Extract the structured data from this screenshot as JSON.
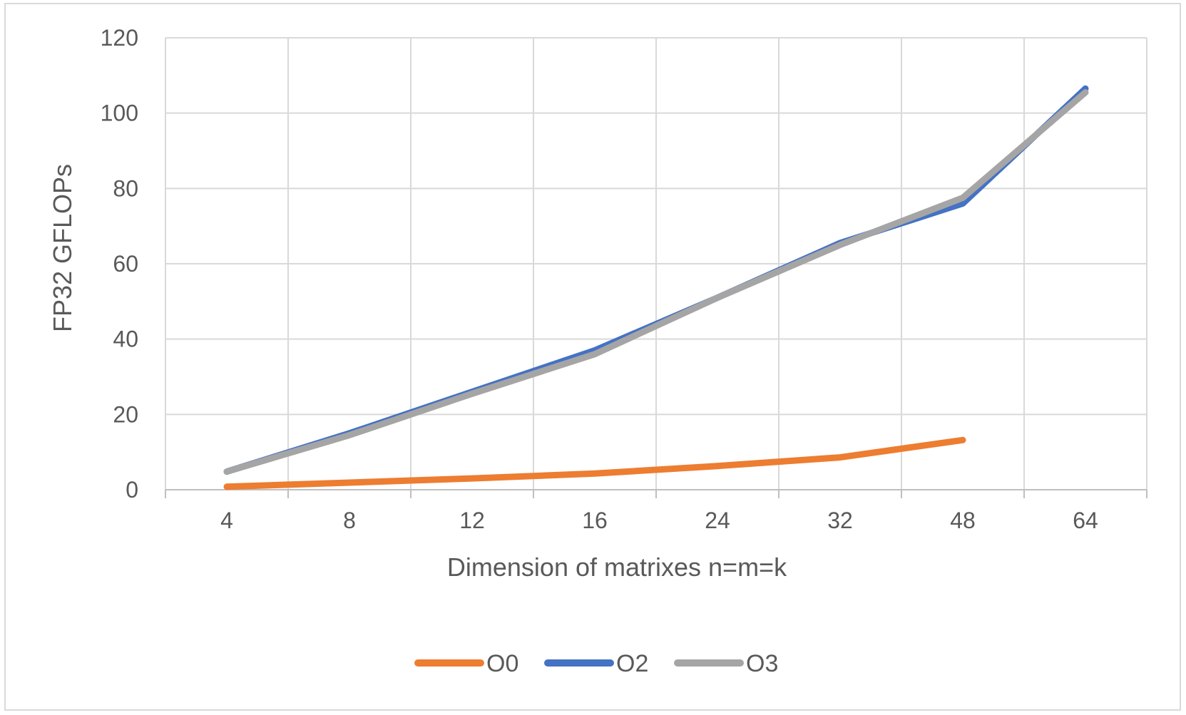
{
  "chart_data": {
    "type": "line",
    "title": "",
    "xlabel": "Dimension of matrixes n=m=k",
    "ylabel": "FP32 GFLOPs",
    "categories": [
      "4",
      "8",
      "12",
      "16",
      "24",
      "32",
      "48",
      "64"
    ],
    "ylim": [
      0,
      120
    ],
    "yticks": [
      0,
      20,
      40,
      60,
      80,
      100,
      120
    ],
    "grid": true,
    "legend_position": "bottom",
    "series": [
      {
        "name": "O0",
        "color": "#ed7d31",
        "values": [
          0.8,
          1.9,
          3.0,
          4.3,
          6.3,
          8.6,
          13.2,
          null
        ]
      },
      {
        "name": "O2",
        "color": "#4472c4",
        "values": [
          4.8,
          15.0,
          26.0,
          37.0,
          51.0,
          65.5,
          76.0,
          106.5
        ]
      },
      {
        "name": "O3",
        "color": "#a5a5a5",
        "values": [
          4.8,
          14.5,
          25.5,
          36.0,
          51.0,
          65.0,
          77.5,
          105.5
        ]
      }
    ]
  }
}
